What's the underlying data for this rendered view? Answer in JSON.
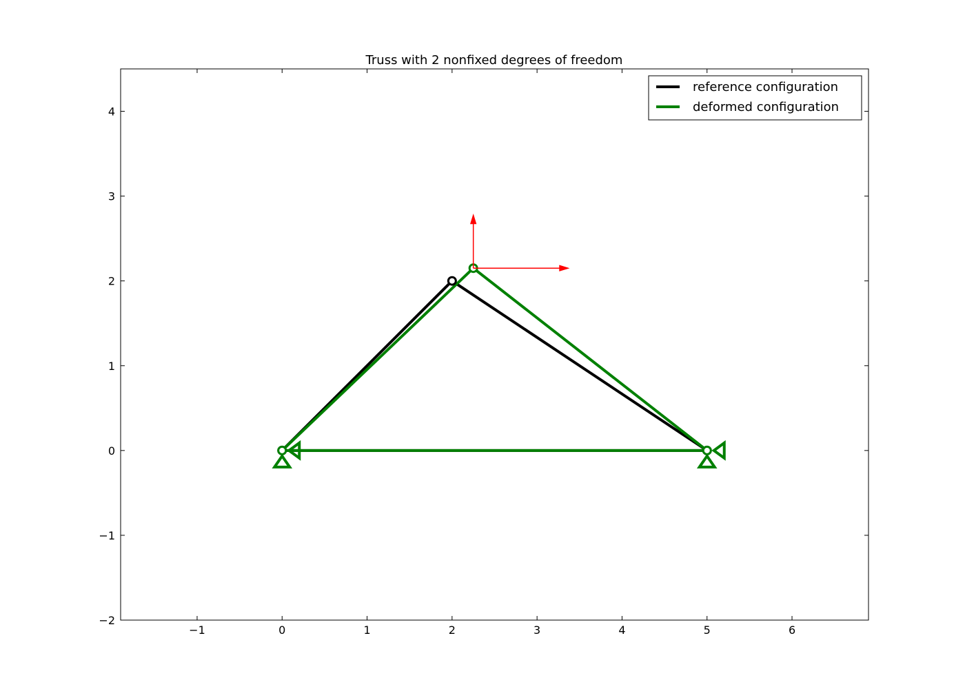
{
  "chart_data": {
    "type": "line",
    "title": "Truss with 2 nonfixed degrees of freedom",
    "xlabel": "",
    "ylabel": "",
    "xlim": [
      -1.9,
      6.9
    ],
    "ylim": [
      -2,
      4.5
    ],
    "xticks": [
      -1,
      0,
      1,
      2,
      3,
      4,
      5,
      6
    ],
    "xtick_labels": [
      "−1",
      "0",
      "1",
      "2",
      "3",
      "4",
      "5",
      "6"
    ],
    "yticks": [
      -2,
      -1,
      0,
      1,
      2,
      3,
      4
    ],
    "ytick_labels": [
      "−2",
      "−1",
      "0",
      "1",
      "2",
      "3",
      "4"
    ],
    "grid": false,
    "legend_position": "top-right",
    "series": [
      {
        "name": "reference configuration",
        "color": "#000000",
        "nodes": [
          {
            "x": 0,
            "y": 0
          },
          {
            "x": 5,
            "y": 0
          },
          {
            "x": 2,
            "y": 2
          }
        ],
        "members": [
          [
            0,
            1
          ],
          [
            0,
            2
          ],
          [
            1,
            2
          ]
        ]
      },
      {
        "name": "deformed configuration",
        "color": "#008000",
        "nodes": [
          {
            "x": 0,
            "y": 0
          },
          {
            "x": 5,
            "y": 0
          },
          {
            "x": 2.25,
            "y": 2.15
          }
        ],
        "members": [
          [
            0,
            1
          ],
          [
            0,
            2
          ],
          [
            1,
            2
          ]
        ]
      }
    ],
    "supports": [
      {
        "node": {
          "x": 0,
          "y": 0
        },
        "types": [
          "vertical",
          "horizontal"
        ]
      },
      {
        "node": {
          "x": 5,
          "y": 0
        },
        "types": [
          "vertical",
          "horizontal"
        ]
      }
    ],
    "force_arrows": {
      "color": "#ff0000",
      "origin": {
        "x": 2.25,
        "y": 2.15
      },
      "vectors": [
        {
          "dx": 0,
          "dy": 0.63
        },
        {
          "dx": 1.12,
          "dy": 0
        }
      ]
    }
  }
}
